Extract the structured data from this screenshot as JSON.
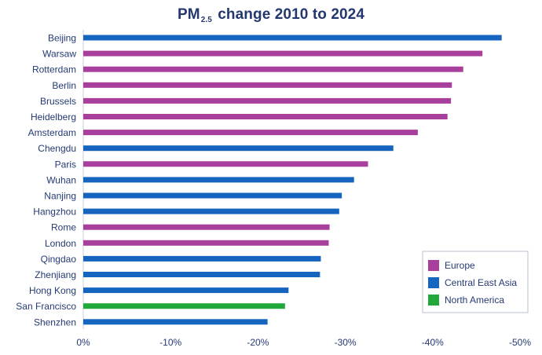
{
  "chart_data": {
    "type": "bar",
    "orientation": "horizontal",
    "title": {
      "prefix": "PM",
      "subscript": "2.5",
      "suffix": " change 2010 to 2024"
    },
    "xlabel": "",
    "ylabel": "",
    "xlim": [
      0,
      -50
    ],
    "x_ticks": [
      0,
      -10,
      -20,
      -30,
      -40,
      -50
    ],
    "x_tick_labels": [
      "0%",
      "-10%",
      "-20%",
      "-30%",
      "-40%",
      "-50%"
    ],
    "grid": false,
    "legend_position": "bottom-right",
    "legend": [
      {
        "name": "Europe",
        "color": "#a93f9c"
      },
      {
        "name": "Central East Asia",
        "color": "#1565c0"
      },
      {
        "name": "North America",
        "color": "#22a83a"
      }
    ],
    "categories": [
      "Beijing",
      "Warsaw",
      "Rotterdam",
      "Berlin",
      "Brussels",
      "Heidelberg",
      "Amsterdam",
      "Chengdu",
      "Paris",
      "Wuhan",
      "Nanjing",
      "Hangzhou",
      "Rome",
      "London",
      "Qingdao",
      "Zhenjiang",
      "Hong Kong",
      "San Francisco",
      "Shenzhen"
    ],
    "values": [
      -47.9,
      -45.7,
      -43.5,
      -42.2,
      -42.1,
      -41.7,
      -38.3,
      -35.5,
      -32.6,
      -31.0,
      -29.6,
      -29.3,
      -28.2,
      -28.1,
      -27.2,
      -27.1,
      -23.5,
      -23.1,
      -21.1
    ],
    "regions": [
      "Central East Asia",
      "Europe",
      "Europe",
      "Europe",
      "Europe",
      "Europe",
      "Europe",
      "Central East Asia",
      "Europe",
      "Central East Asia",
      "Central East Asia",
      "Central East Asia",
      "Europe",
      "Europe",
      "Central East Asia",
      "Central East Asia",
      "Central East Asia",
      "North America",
      "Central East Asia"
    ]
  }
}
